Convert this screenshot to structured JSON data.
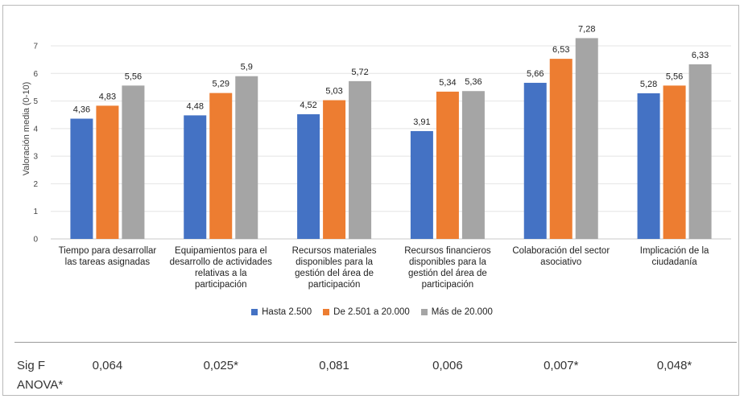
{
  "chart_data": {
    "type": "bar",
    "ylabel": "Valoración media (0-10)",
    "ylim": [
      0,
      7
    ],
    "yticks": [
      0,
      1,
      2,
      3,
      4,
      5,
      6,
      7
    ],
    "categories": [
      [
        "Tiempo para desarrollar",
        "las tareas asignadas"
      ],
      [
        "Equipamientos para el",
        "desarrollo de actividades",
        "relativas a la",
        "participación"
      ],
      [
        "Recursos materiales",
        "disponibles para la",
        "gestión del área de",
        "participación"
      ],
      [
        "Recursos financieros",
        "disponibles para la",
        "gestión del área de",
        "participación"
      ],
      [
        "Colaboración del sector",
        "asociativo"
      ],
      [
        "Implicación de la",
        "ciudadanía"
      ]
    ],
    "series": [
      {
        "name": "Hasta 2.500",
        "color": "#4472C4",
        "values": [
          4.36,
          4.48,
          4.52,
          3.91,
          5.66,
          5.28
        ],
        "labels": [
          "4,36",
          "4,48",
          "4,52",
          "3,91",
          "5,66",
          "5,28"
        ]
      },
      {
        "name": "De 2.501 a 20.000",
        "color": "#ED7D31",
        "values": [
          4.83,
          5.29,
          5.03,
          5.34,
          6.53,
          5.56
        ],
        "labels": [
          "4,83",
          "5,29",
          "5,03",
          "5,34",
          "6,53",
          "5,56"
        ]
      },
      {
        "name": "Más de 20.000",
        "color": "#A5A5A5",
        "values": [
          5.56,
          5.9,
          5.72,
          5.36,
          7.28,
          6.33
        ],
        "labels": [
          "5,56",
          "5,9",
          "5,72",
          "5,36",
          "7,28",
          "6,33"
        ]
      }
    ],
    "legend_position": "bottom",
    "grid": true
  },
  "anova": {
    "label_line1": "Sig F",
    "label_line2": "ANOVA*",
    "values": [
      "0,064",
      "0,025*",
      "0,081",
      "0,006",
      "0,007*",
      "0,048*"
    ]
  }
}
